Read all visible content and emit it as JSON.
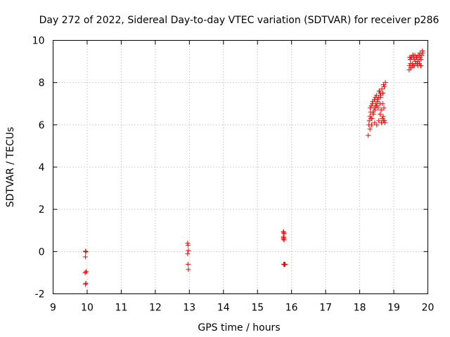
{
  "chart_data": {
    "type": "scatter",
    "title": "Day 272 of 2022, Sidereal Day-to-day VTEC variation (SDTVAR) for receiver p286",
    "xlabel": "GPS time / hours",
    "ylabel": "SDTVAR / TECUs",
    "xlim": [
      9,
      20
    ],
    "ylim": [
      -2,
      10
    ],
    "xticks": [
      9,
      10,
      11,
      12,
      13,
      14,
      15,
      16,
      17,
      18,
      19,
      20
    ],
    "yticks": [
      -2,
      0,
      2,
      4,
      6,
      8,
      10
    ],
    "grid": true,
    "marker": "plus",
    "series": [
      {
        "name": "SDTVAR",
        "color": "#ff0000",
        "x": [
          9.95,
          9.96,
          9.95,
          9.97,
          9.94,
          9.96,
          9.95,
          9.96,
          12.95,
          12.96,
          12.97,
          12.95,
          12.96,
          12.97,
          15.76,
          15.77,
          15.78,
          15.76,
          15.77,
          15.78,
          15.76,
          15.77,
          15.79,
          15.8,
          15.81,
          18.25,
          18.3,
          18.35,
          18.28,
          18.4,
          18.45,
          18.5,
          18.38,
          18.55,
          18.6,
          18.65,
          18.7,
          18.58,
          18.72,
          18.75,
          18.32,
          18.42,
          18.48,
          18.52,
          18.62,
          18.68,
          18.3,
          18.36,
          18.44,
          18.5,
          18.56,
          18.64,
          18.7,
          18.74,
          18.34,
          18.46,
          18.54,
          18.6,
          18.66,
          18.27,
          18.33,
          18.39,
          18.47,
          18.53,
          18.59,
          18.63,
          18.69,
          18.73,
          18.31,
          18.37,
          18.43,
          18.49,
          18.57,
          18.61,
          18.67,
          18.71,
          19.45,
          19.5,
          19.55,
          19.6,
          19.65,
          19.7,
          19.75,
          19.8,
          19.48,
          19.52,
          19.58,
          19.62,
          19.68,
          19.72,
          19.78,
          19.82,
          19.46,
          19.54,
          19.64,
          19.74,
          19.84,
          19.5,
          19.6,
          19.7,
          19.8,
          19.56,
          19.66,
          19.76,
          19.49,
          19.59,
          19.69,
          19.79,
          19.47,
          19.57,
          19.67,
          19.77,
          19.85
        ],
        "y": [
          0.02,
          -0.01,
          -0.25,
          -0.95,
          -1.0,
          -1.5,
          -1.55,
          0.0,
          0.4,
          0.3,
          0.05,
          -0.1,
          -0.6,
          -0.85,
          0.95,
          0.9,
          0.85,
          0.7,
          0.65,
          0.55,
          0.6,
          -0.6,
          -0.6,
          -0.62,
          -0.6,
          5.5,
          5.8,
          6.0,
          6.2,
          6.5,
          6.7,
          6.9,
          7.1,
          7.3,
          7.5,
          7.7,
          7.9,
          7.6,
          7.8,
          8.0,
          6.6,
          6.8,
          7.0,
          7.2,
          7.4,
          7.5,
          6.4,
          6.3,
          6.1,
          6.0,
          6.2,
          6.1,
          6.2,
          6.1,
          6.9,
          7.3,
          6.8,
          6.5,
          6.3,
          6.0,
          6.3,
          6.6,
          6.9,
          7.1,
          7.0,
          6.7,
          6.4,
          6.2,
          6.8,
          7.0,
          7.2,
          7.4,
          7.6,
          7.3,
          7.0,
          6.8,
          8.6,
          8.7,
          8.8,
          8.8,
          8.9,
          8.8,
          8.9,
          8.8,
          9.1,
          9.2,
          9.2,
          9.3,
          9.2,
          9.3,
          9.2,
          9.3,
          8.8,
          8.9,
          9.0,
          9.1,
          9.5,
          9.2,
          9.1,
          9.0,
          9.1,
          9.3,
          9.2,
          9.3,
          8.9,
          8.8,
          8.9,
          8.8,
          9.2,
          9.3,
          9.2,
          9.4,
          9.4
        ]
      }
    ]
  }
}
